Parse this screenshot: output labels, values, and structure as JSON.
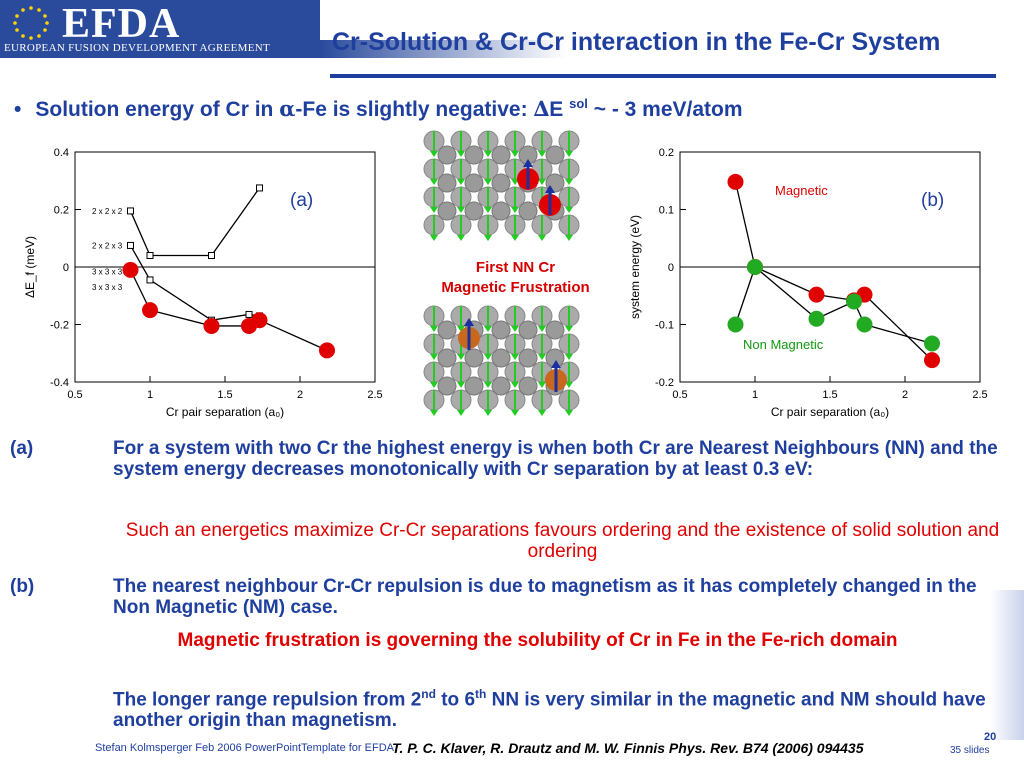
{
  "header": {
    "logo_text": "EFDA",
    "logo_subtitle": "EUROPEAN FUSION DEVELOPMENT AGREEMENT",
    "title": "Cr-Solution & Cr-Cr interaction in the Fe-Cr System"
  },
  "bullet": {
    "pre": "Solution energy of Cr in ",
    "alpha": "α",
    "mid": "-Fe is slightly negative: ",
    "delta": "∆",
    "e": "E ",
    "sup": "sol",
    "post": " ~ - 3 meV/atom"
  },
  "center": {
    "caption_line1": "First NN Cr",
    "caption_line2": "Magnetic Frustration"
  },
  "paragraphs": {
    "a_label": "(a)",
    "a_text": "For a system with two Cr the highest energy is when both Cr are Nearest Neighbours (NN) and the system energy decreases monotonically with Cr separation by at least 0.3 eV:",
    "a_red": "Such an energetics maximize Cr-Cr separations favours ordering and the existence of solid solution and ordering",
    "b_label": "(b)",
    "b_text": "The nearest neighbour Cr-Cr repulsion is due to magnetism as it has completely changed in the Non Magnetic (NM) case.",
    "b_red": "Magnetic frustration is governing the solubility of Cr in Fe in the Fe-rich domain",
    "c_pre": "The longer range repulsion from 2",
    "c_sup1": "nd",
    "c_mid": " to 6",
    "c_sup2": "th",
    "c_post": " NN is very similar in the magnetic and NM should have another origin than magnetism."
  },
  "footer": {
    "author": "Stefan Kolmsperger Feb 2006 PowerPointTemplate for EFDA",
    "reference": "T. P. C. Klaver, R. Drautz and M. W. Finnis Phys. Rev. B74 (2006) 094435",
    "page": "20",
    "total": "35 slides"
  },
  "colors": {
    "brand_blue": "#1f3f9e",
    "accent_red": "#e00000",
    "magnetic_marker": "#e00000",
    "nonmagnetic_marker": "#22aa22"
  },
  "chart_data": [
    {
      "type": "line",
      "panel_label": "(a)",
      "xlabel": "Cr pair separation (a₀)",
      "ylabel": "ΔE_f (meV)",
      "xlim": [
        0.5,
        2.5
      ],
      "ylim": [
        -0.4,
        0.4
      ],
      "xticks": [
        "0.5",
        "1",
        "1.5",
        "2",
        "2.5"
      ],
      "yticks": [
        "0.4",
        "0.2",
        "0",
        "-0.2",
        "-0.4"
      ],
      "supercell_labels": [
        "2 x 2 x 2",
        "2 x 2 x 3",
        "3 x 3 x 3",
        "3 x 3 x 3"
      ],
      "series": [
        {
          "marker": "square",
          "x": [
            0.87,
            1.0,
            1.41,
            1.73
          ],
          "y": [
            0.195,
            0.04,
            0.04,
            0.275
          ]
        },
        {
          "marker": "square",
          "x": [
            0.87,
            1.0,
            1.41,
            1.66,
            1.73
          ],
          "y": [
            0.075,
            -0.045,
            -0.185,
            -0.165,
            -0.17
          ]
        },
        {
          "marker": "circle",
          "x": [
            0.87,
            1.0,
            1.41,
            1.66,
            1.73,
            2.18
          ],
          "y": [
            -0.01,
            -0.15,
            -0.205,
            -0.205,
            -0.185,
            -0.29
          ]
        }
      ]
    },
    {
      "type": "line",
      "panel_label": "(b)",
      "xlabel": "Cr pair separation (a₀)",
      "ylabel": "system energy (eV)",
      "xlim": [
        0.5,
        2.5
      ],
      "ylim": [
        -0.2,
        0.2
      ],
      "xticks": [
        "0.5",
        "1",
        "1.5",
        "2",
        "2.5"
      ],
      "yticks": [
        "0.2",
        "0.1",
        "0",
        "-0.1",
        "-0.2"
      ],
      "annotations": [
        "Magnetic",
        "Non Magnetic"
      ],
      "series": [
        {
          "name": "Magnetic",
          "x": [
            0.87,
            1.0,
            1.41,
            1.66,
            1.73,
            2.18
          ],
          "y": [
            0.148,
            0.0,
            -0.048,
            -0.058,
            -0.048,
            -0.162
          ]
        },
        {
          "name": "Non Magnetic",
          "x": [
            0.87,
            1.0,
            1.41,
            1.66,
            1.73,
            2.18
          ],
          "y": [
            -0.1,
            0.0,
            -0.09,
            -0.06,
            -0.1,
            -0.133
          ]
        }
      ]
    }
  ]
}
